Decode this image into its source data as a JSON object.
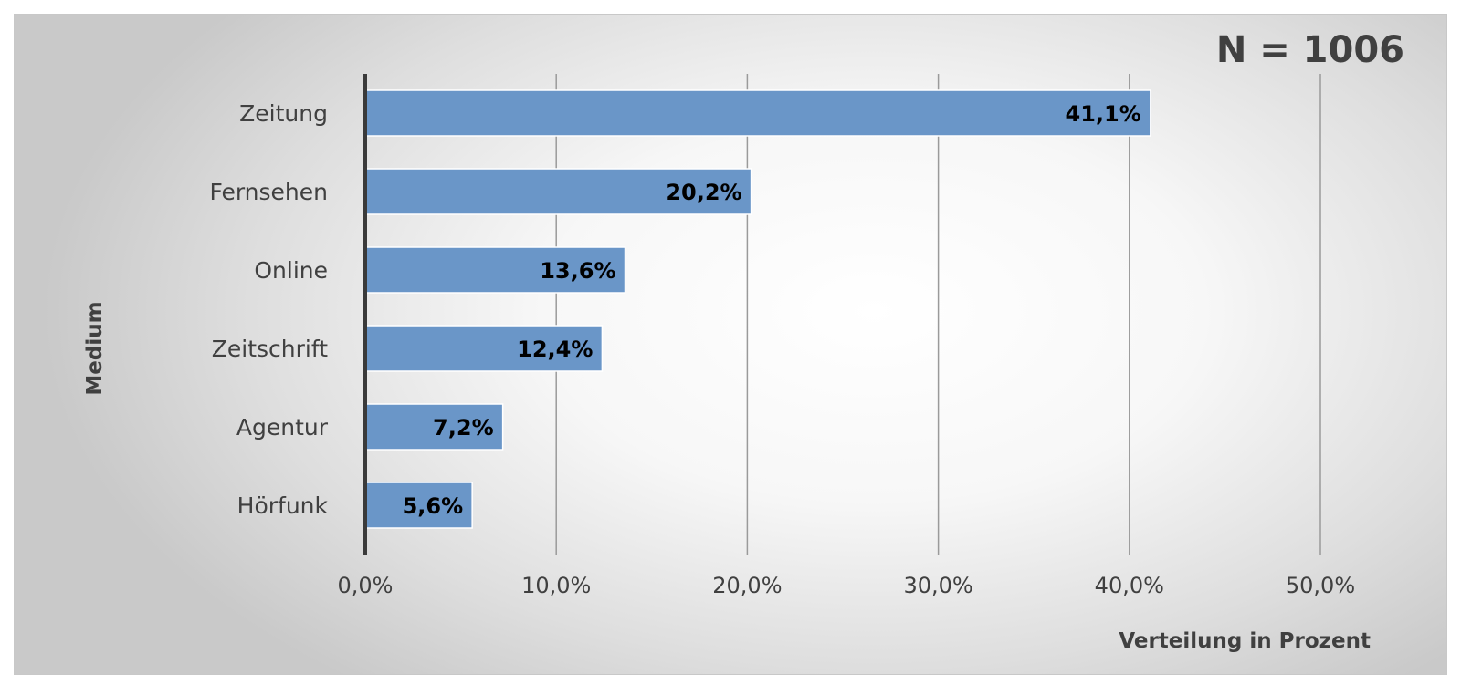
{
  "chart_data": {
    "type": "bar",
    "orientation": "horizontal",
    "categories": [
      "Zeitung",
      "Fernsehen",
      "Online",
      "Zeitschrift",
      "Agentur",
      "Hörfunk"
    ],
    "values": [
      41.1,
      20.2,
      13.6,
      12.4,
      7.2,
      5.6
    ],
    "data_labels": [
      "41,1%",
      "20,2%",
      "13,6%",
      "12,4%",
      "7,2%",
      "5,6%"
    ],
    "xlim": [
      0,
      50
    ],
    "x_ticks": [
      0,
      10,
      20,
      30,
      40,
      50
    ],
    "x_tick_labels": [
      "0,0%",
      "10,0%",
      "20,0%",
      "30,0%",
      "40,0%",
      "50,0%"
    ],
    "xlabel": "Verteilung in Prozent",
    "ylabel": "Medium",
    "annotation": "N = 1006",
    "grid": "vertical",
    "legend": "none",
    "colors": {
      "bar": "#6a96c8",
      "bar_edge": "#ffffff",
      "grid": "#9a9a9a",
      "axis": "#3a3a3a",
      "text": "#404040"
    }
  }
}
